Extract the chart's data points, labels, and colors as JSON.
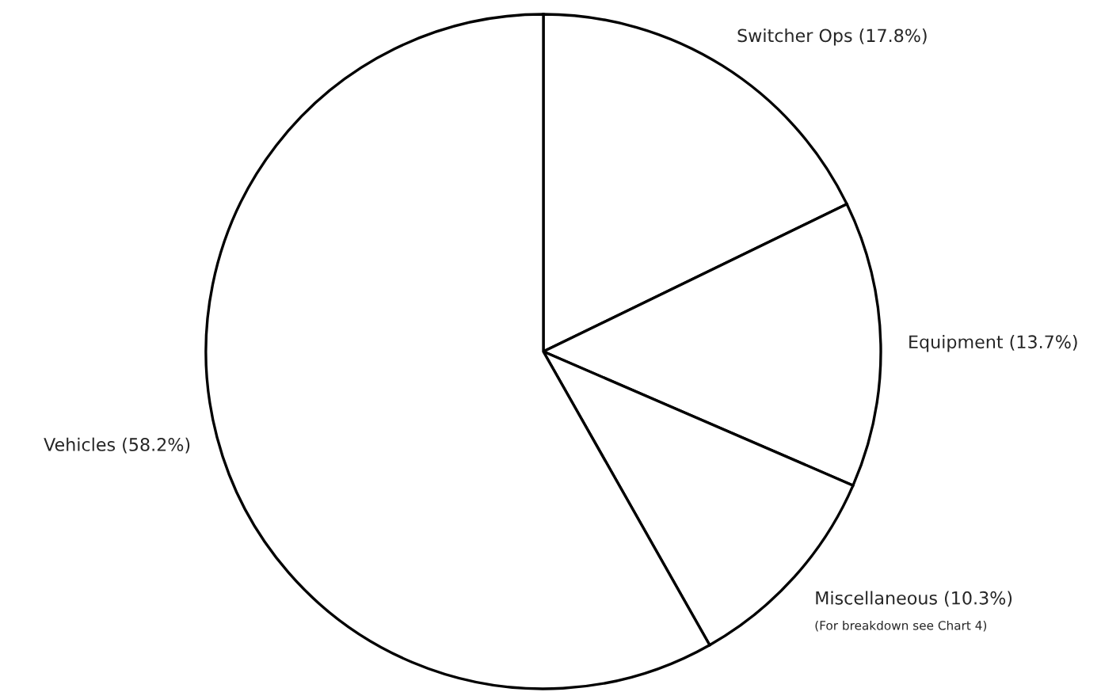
{
  "chart_data": {
    "type": "pie",
    "categories": [
      "Switcher Ops (17.8%)",
      "Equipment (13.7%)",
      "Miscellaneous (10.3%)",
      "Vehicles (58.2%)"
    ],
    "values": [
      17.8,
      13.7,
      10.3,
      58.2
    ],
    "colors": [
      "#ffffff",
      "#ffffff",
      "#ffffff",
      "#ffffff"
    ],
    "annotations": [
      "(For breakdown see Chart 4)"
    ],
    "legend": false
  }
}
